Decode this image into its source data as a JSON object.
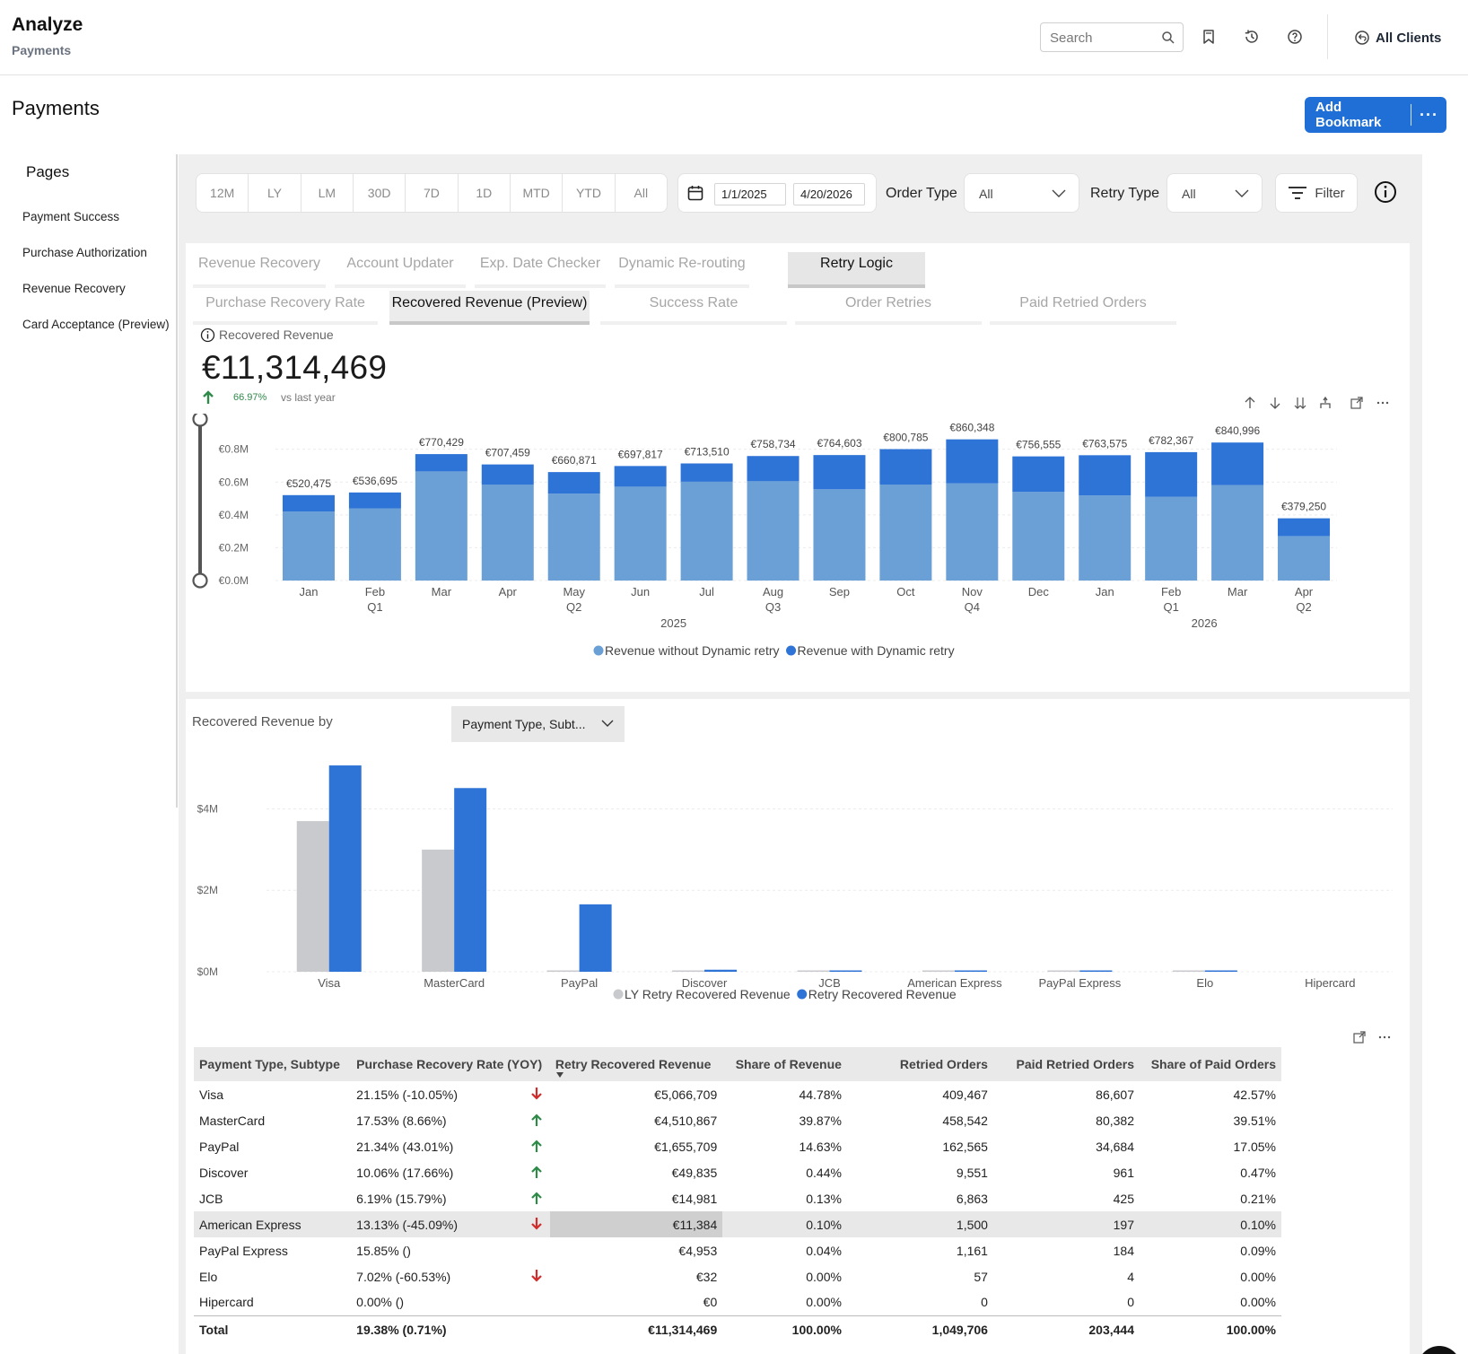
{
  "header": {
    "app_title": "Analyze",
    "app_subtitle": "Payments",
    "search_placeholder": "Search",
    "all_clients": "All Clients",
    "icons": [
      "search-icon",
      "bookmark-icon",
      "history-icon",
      "help-icon",
      "clients-icon"
    ]
  },
  "page": {
    "title": "Payments",
    "add_bookmark": "Add Bookmark",
    "more": "···",
    "accent": "#1f6fd6"
  },
  "sidebar": {
    "title": "Pages",
    "items": [
      {
        "label": "Payment Success"
      },
      {
        "label": "Purchase Authorization"
      },
      {
        "label": "Revenue Recovery"
      },
      {
        "label": "Card Acceptance (Preview)"
      }
    ]
  },
  "filters": {
    "periods": [
      "12M",
      "LY",
      "LM",
      "30D",
      "7D",
      "1D",
      "MTD",
      "YTD",
      "All"
    ],
    "date_from": "1/1/2025",
    "date_to": "4/20/2026",
    "order_type_label": "Order Type",
    "order_type_value": "All",
    "retry_type_label": "Retry Type",
    "retry_type_value": "All",
    "filter_label": "Filter"
  },
  "tabs": {
    "primary": [
      "Revenue Recovery",
      "Account Updater",
      "Exp. Date Checker",
      "Dynamic Re-routing",
      "Retry Logic"
    ],
    "primary_active": "Retry Logic",
    "secondary": [
      "Purchase Recovery Rate",
      "Recovered Revenue (Preview)",
      "Success Rate",
      "Order Retries",
      "Paid Retried Orders"
    ],
    "secondary_active": "Recovered Revenue (Preview)"
  },
  "kpi": {
    "label": "Recovered Revenue",
    "value": "€11,314,469",
    "change": "66.97%",
    "vs": "vs last year",
    "change_color": "#2f8a4a"
  },
  "chart_data": [
    {
      "type": "bar",
      "stacked": true,
      "categories": [
        "Jan",
        "Feb",
        "Mar",
        "Apr",
        "May",
        "Jun",
        "Jul",
        "Aug",
        "Sep",
        "Oct",
        "Nov",
        "Dec",
        "Jan",
        "Feb",
        "Mar",
        "Apr"
      ],
      "quarter_labels": [
        "",
        "Q1",
        "",
        "",
        "Q2",
        "",
        "",
        "Q3",
        "",
        "",
        "Q4",
        "",
        "",
        "Q1",
        "",
        "Q2"
      ],
      "year_labels": [
        {
          "label": "2025",
          "center_index": 5.5
        },
        {
          "label": "2026",
          "center_index": 13.5
        }
      ],
      "series": [
        {
          "name": "Revenue without Dynamic retry",
          "color": "#6aa0d6",
          "values": [
            420000,
            440000,
            665000,
            585000,
            530000,
            572000,
            602000,
            605000,
            556000,
            585000,
            592000,
            540000,
            519000,
            511000,
            582000,
            271000
          ]
        },
        {
          "name": "Revenue with Dynamic retry",
          "color": "#2e73d6",
          "values": [
            100475,
            96695,
            105429,
            122459,
            130871,
            125817,
            111510,
            153734,
            208603,
            215785,
            268348,
            216555,
            244575,
            271367,
            258996,
            108250
          ]
        }
      ],
      "totals": [
        "€520,475",
        "€536,695",
        "€770,429",
        "€707,459",
        "€660,871",
        "€697,817",
        "€713,510",
        "€758,734",
        "€764,603",
        "€800,785",
        "€860,348",
        "€756,555",
        "€763,575",
        "€782,367",
        "€840,996",
        "€379,250"
      ],
      "y_ticks": [
        "€0.0M",
        "€0.2M",
        "€0.4M",
        "€0.6M",
        "€0.8M"
      ],
      "ylim": [
        0,
        900000
      ],
      "legend_position": "bottom-center",
      "grid": true
    },
    {
      "type": "bar",
      "title": "Recovered Revenue by",
      "group_by": "Payment Type, Subt...",
      "categories": [
        "Visa",
        "MasterCard",
        "PayPal",
        "Discover",
        "JCB",
        "American Express",
        "PayPal Express",
        "Elo",
        "Hipercard"
      ],
      "series": [
        {
          "name": "LY Retry Recovered Revenue",
          "color": "#c8cacd",
          "values": [
            3700000,
            3000000,
            25000,
            15000,
            8000,
            5000,
            2000,
            30,
            0
          ]
        },
        {
          "name": "Retry Recovered Revenue",
          "color": "#2e73d6",
          "values": [
            5066709,
            4510867,
            1655709,
            49835,
            14981,
            11384,
            4953,
            32,
            0
          ]
        }
      ],
      "y_ticks": [
        "$0M",
        "$2M",
        "$4M"
      ],
      "ylim": [
        0,
        5200000
      ],
      "legend_position": "bottom-center",
      "grid": true
    }
  ],
  "table": {
    "columns": [
      "Payment Type, Subtype",
      "Purchase Recovery Rate (YOY)",
      "Retry Recovered Revenue",
      "Share of Revenue",
      "Retried Orders",
      "Paid Retried Orders",
      "Share of Paid Orders"
    ],
    "rows": [
      {
        "type": "Visa",
        "rate": "21.15% (-10.05%)",
        "trend": "down",
        "revenue": "€5,066,709",
        "share_rev": "44.78%",
        "retried": "409,467",
        "paid": "86,607",
        "share_paid": "42.57%"
      },
      {
        "type": "MasterCard",
        "rate": "17.53% (8.66%)",
        "trend": "up",
        "revenue": "€4,510,867",
        "share_rev": "39.87%",
        "retried": "458,542",
        "paid": "80,382",
        "share_paid": "39.51%"
      },
      {
        "type": "PayPal",
        "rate": "21.34% (43.01%)",
        "trend": "up",
        "revenue": "€1,655,709",
        "share_rev": "14.63%",
        "retried": "162,565",
        "paid": "34,684",
        "share_paid": "17.05%"
      },
      {
        "type": "Discover",
        "rate": "10.06% (17.66%)",
        "trend": "up",
        "revenue": "€49,835",
        "share_rev": "0.44%",
        "retried": "9,551",
        "paid": "961",
        "share_paid": "0.47%"
      },
      {
        "type": "JCB",
        "rate": "6.19% (15.79%)",
        "trend": "up",
        "revenue": "€14,981",
        "share_rev": "0.13%",
        "retried": "6,863",
        "paid": "425",
        "share_paid": "0.21%"
      },
      {
        "type": "American Express",
        "rate": "13.13% (-45.09%)",
        "trend": "down",
        "revenue": "€11,384",
        "share_rev": "0.10%",
        "retried": "1,500",
        "paid": "197",
        "share_paid": "0.10%"
      },
      {
        "type": "PayPal Express",
        "rate": "15.85% ()",
        "trend": "",
        "revenue": "€4,953",
        "share_rev": "0.04%",
        "retried": "1,161",
        "paid": "184",
        "share_paid": "0.09%"
      },
      {
        "type": "Elo",
        "rate": "7.02% (-60.53%)",
        "trend": "down",
        "revenue": "€32",
        "share_rev": "0.00%",
        "retried": "57",
        "paid": "4",
        "share_paid": "0.00%"
      },
      {
        "type": "Hipercard",
        "rate": "0.00% ()",
        "trend": "",
        "revenue": "€0",
        "share_rev": "0.00%",
        "retried": "0",
        "paid": "0",
        "share_paid": "0.00%"
      }
    ],
    "total": {
      "type": "Total",
      "rate": "19.38% (0.71%)",
      "revenue": "€11,314,469",
      "share_rev": "100.00%",
      "retried": "1,049,706",
      "paid": "203,444",
      "share_paid": "100.00%"
    },
    "up_color": "#2f8a4a",
    "down_color": "#d12b2b"
  }
}
